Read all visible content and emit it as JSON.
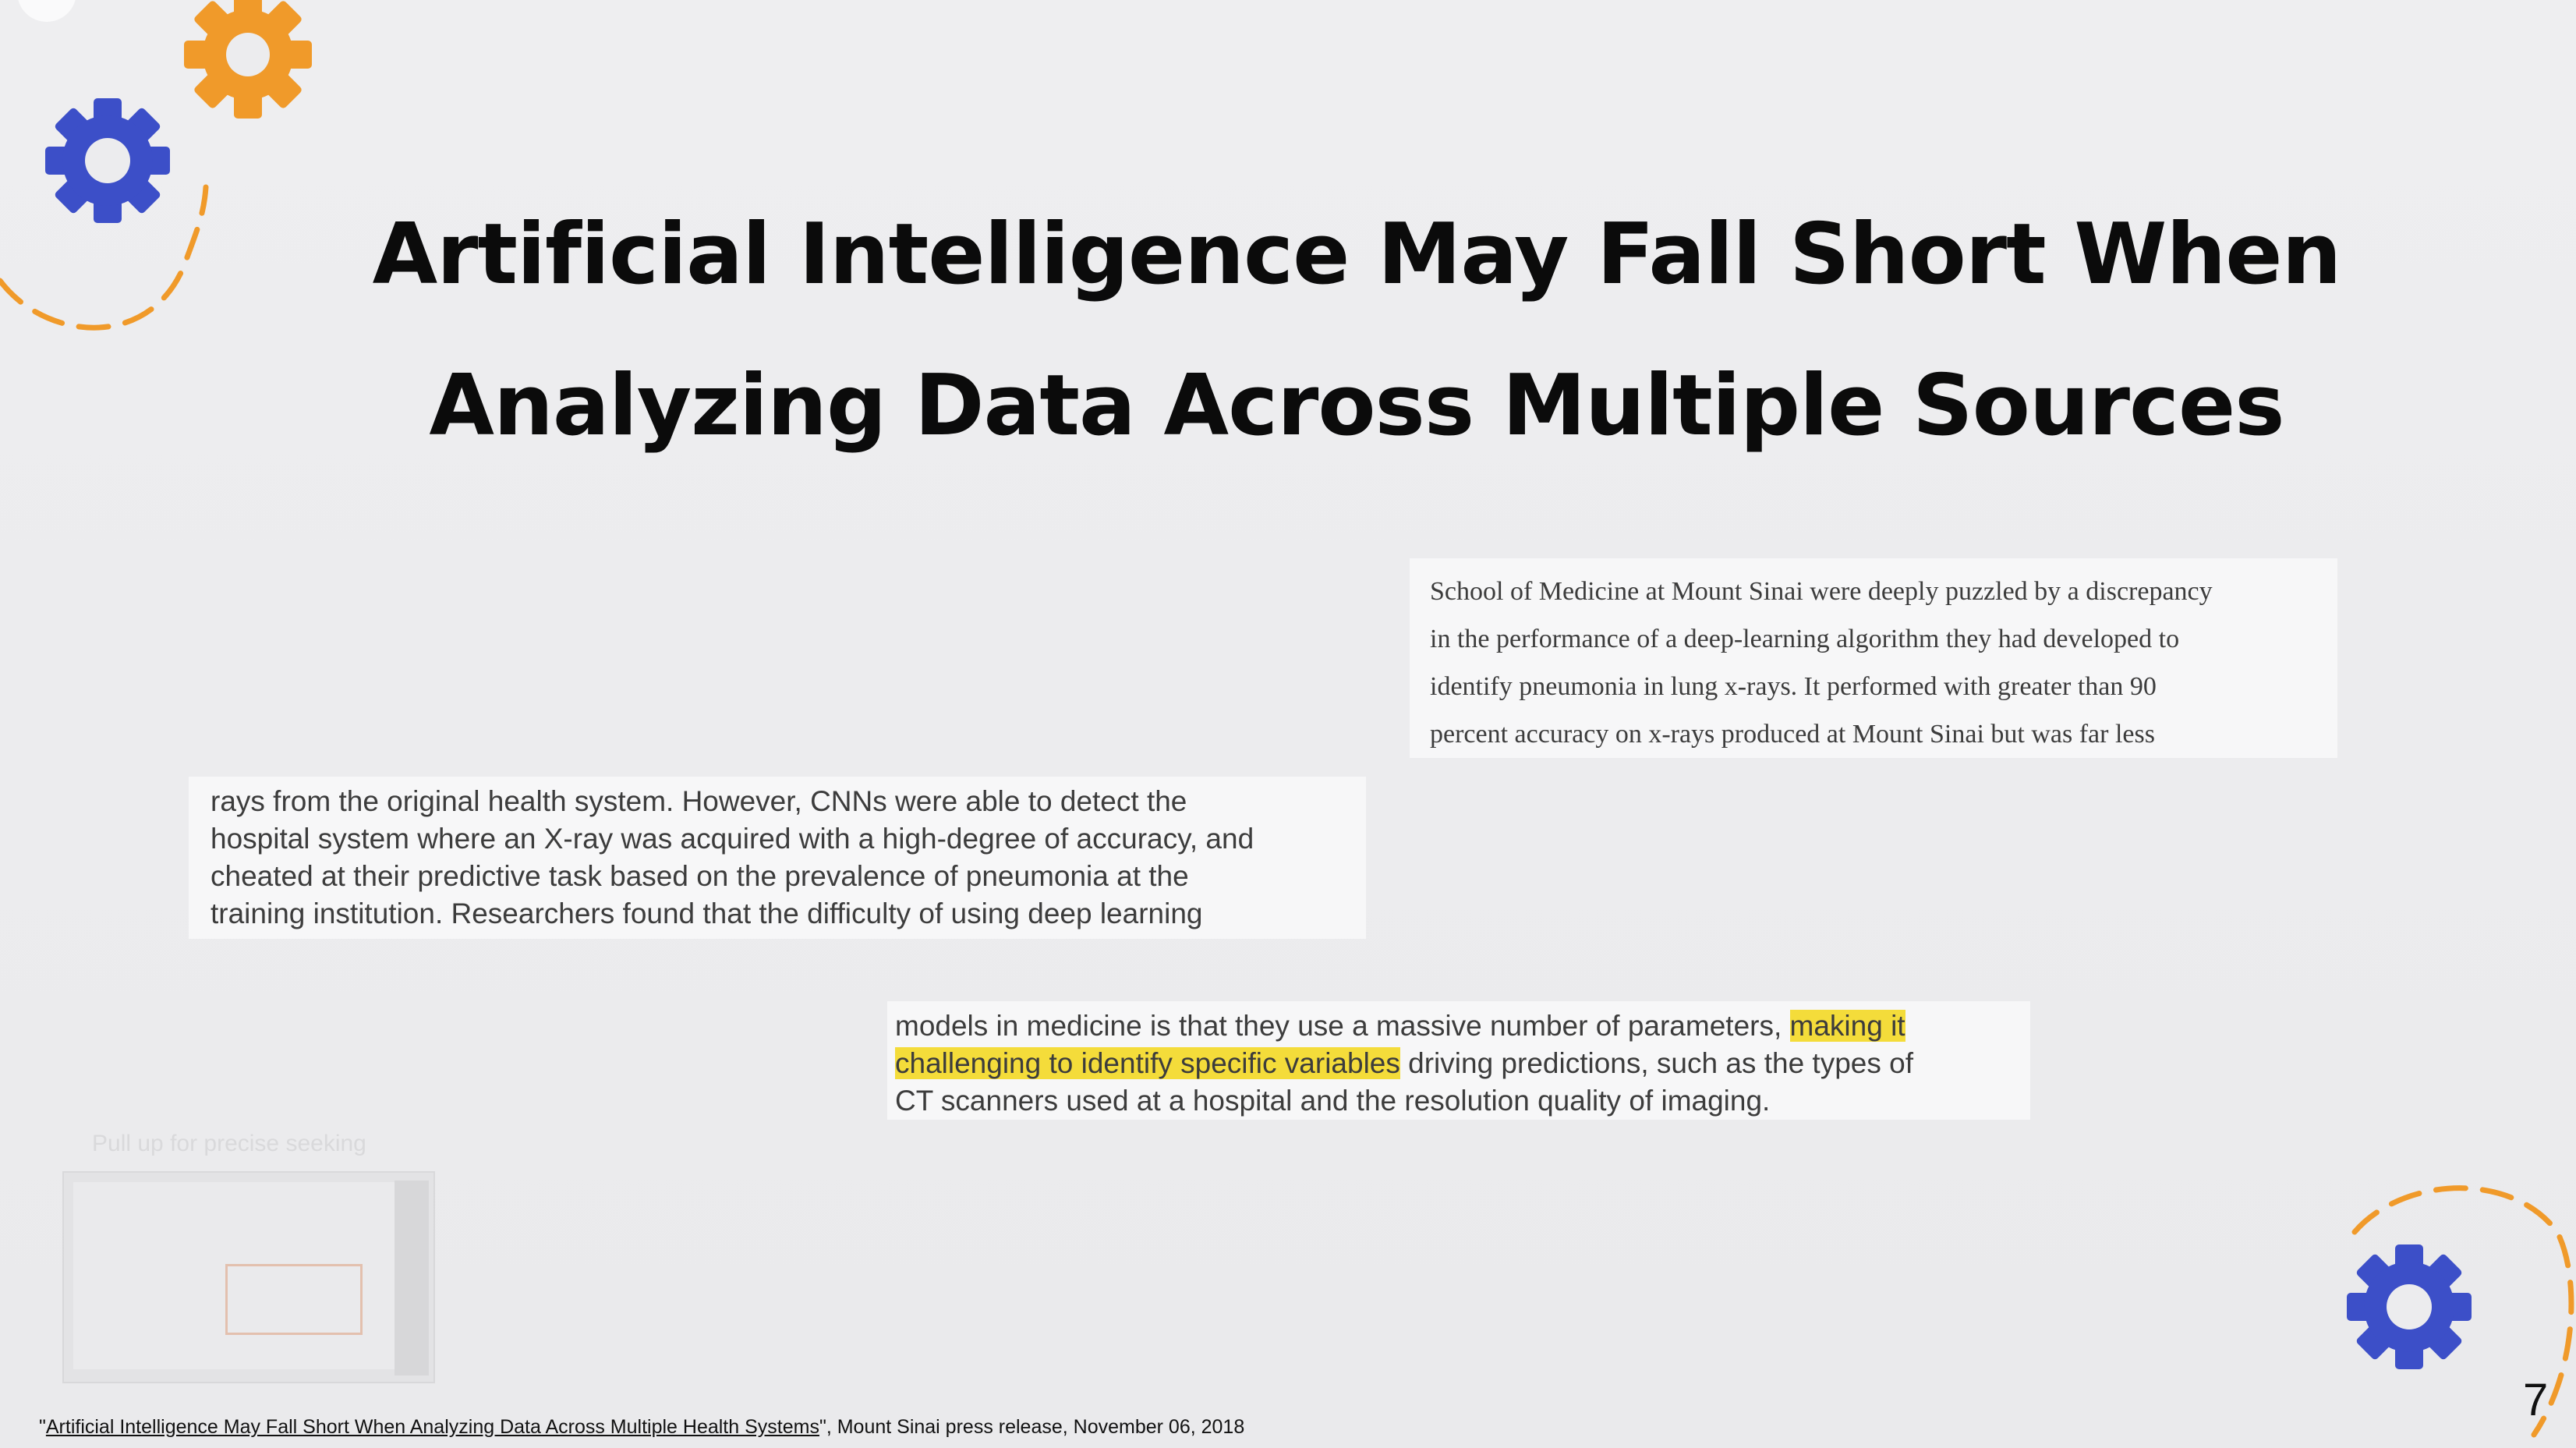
{
  "slide": {
    "title_lines": [
      "Artificial Intelligence May Fall Short When",
      "Analyzing Data Across Multiple Sources"
    ],
    "excerpt_1": [
      "School of Medicine at Mount Sinai were deeply puzzled by a discrepancy",
      "in the performance of a deep-learning algorithm they had developed to",
      "identify pneumonia in lung x-rays. It performed with greater than 90",
      "percent accuracy on x-rays produced at Mount Sinai but was far less"
    ],
    "excerpt_2": [
      "rays from the original health system. However, CNNs were able to detect the",
      "hospital system where an X-ray was acquired with a high-degree of accuracy, and",
      "cheated at their predictive task based on the prevalence of pneumonia at the",
      "training institution. Researchers found that the difficulty of using deep learning"
    ],
    "excerpt_3": {
      "line1_plain": "models in medicine is that they use a massive number of parameters, ",
      "line1_highlight": "making it",
      "line2_highlight": "challenging to identify specific variables",
      "line2_plain": " driving predictions, such as the types of",
      "line3": "CT scanners used at a hospital and the resolution quality of imaging."
    },
    "citation": {
      "quote_open": "\"",
      "link_text": "Artificial Intelligence May Fall Short When Analyzing Data Across Multiple Health Systems",
      "rest": "\", Mount Sinai press release, November 06, 2018"
    },
    "page_number": "7"
  },
  "video_overlay": {
    "seek_hint": "Pull up for precise seeking"
  },
  "colors": {
    "gear_orange": "#f09a2a",
    "gear_blue": "#3c4fc8",
    "highlight": "#f4dc3a"
  },
  "icons": [
    "gear-icon-orange",
    "gear-icon-blue",
    "gear-icon-blue-bottom"
  ]
}
